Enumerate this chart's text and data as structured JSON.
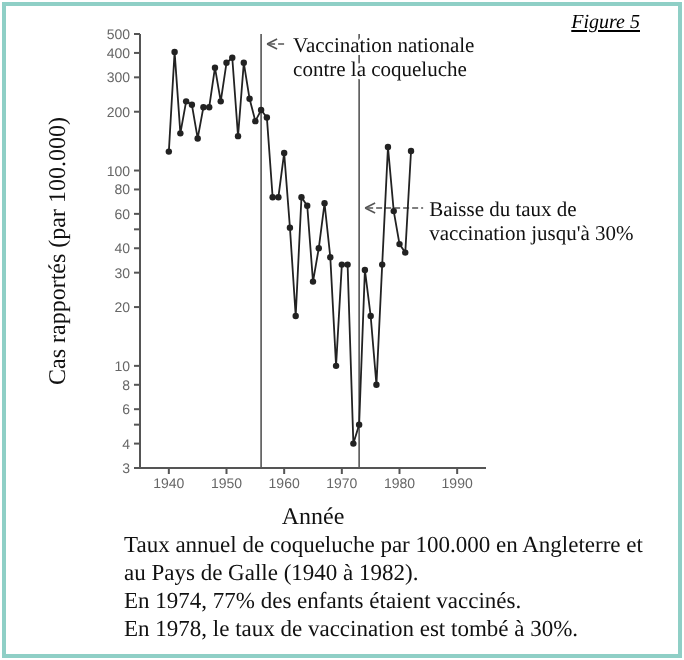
{
  "chart_data": {
    "type": "line",
    "xlabel": "Année",
    "ylabel": "Cas rapportés (par 100.000)",
    "annotations": [
      "Figure 5",
      "Taux annuel de coqueluche par 100.000 en Angleterre et au Pays de Galle (1940 à 1982).",
      "En 1974, 77% des enfants étaient vaccinés.",
      "En 1978, le taux de vaccination est tombé à 30%."
    ],
    "x": [
      1940,
      1941,
      1942,
      1943,
      1944,
      1945,
      1946,
      1947,
      1948,
      1949,
      1950,
      1951,
      1952,
      1953,
      1954,
      1955,
      1956,
      1957,
      1958,
      1959,
      1960,
      1961,
      1962,
      1963,
      1964,
      1965,
      1966,
      1967,
      1968,
      1969,
      1970,
      1971,
      1972,
      1973,
      1974,
      1975,
      1976,
      1977,
      1978,
      1979,
      1980,
      1981,
      1982
    ],
    "series": [
      {
        "color": "#222222",
        "values": [
          125,
          405,
          155,
          226,
          217,
          146,
          211,
          211,
          336,
          226,
          356,
          378,
          150,
          356,
          233,
          179,
          204,
          187,
          73,
          73,
          123,
          51,
          18,
          73,
          66,
          27,
          40,
          68,
          36,
          10,
          33,
          33,
          4,
          5,
          31,
          18,
          8,
          33,
          132,
          62,
          42,
          38,
          126
        ]
      }
    ],
    "xlim": [
      1935,
      1995
    ],
    "xticks": [
      1940,
      1950,
      1960,
      1970,
      1980,
      1990
    ],
    "ylim": [
      3,
      500
    ],
    "yticks": [
      3,
      4,
      {
        "value": 5,
        "label": null
      },
      6,
      8,
      10,
      20,
      30,
      40,
      {
        "value": 50,
        "label": null
      },
      60,
      80,
      100,
      200,
      300,
      400,
      500
    ],
    "log": "y",
    "grid": false,
    "legend": false,
    "marker": "circle",
    "line_style": "solid",
    "ref_lines": [
      {
        "axis": "x",
        "value": 1956,
        "label": "Vaccination nationale contre la coqueluche"
      },
      {
        "axis": "x",
        "value": 1973,
        "label": "Baisse du taux de vaccination jusqu'à 30%"
      }
    ]
  }
}
